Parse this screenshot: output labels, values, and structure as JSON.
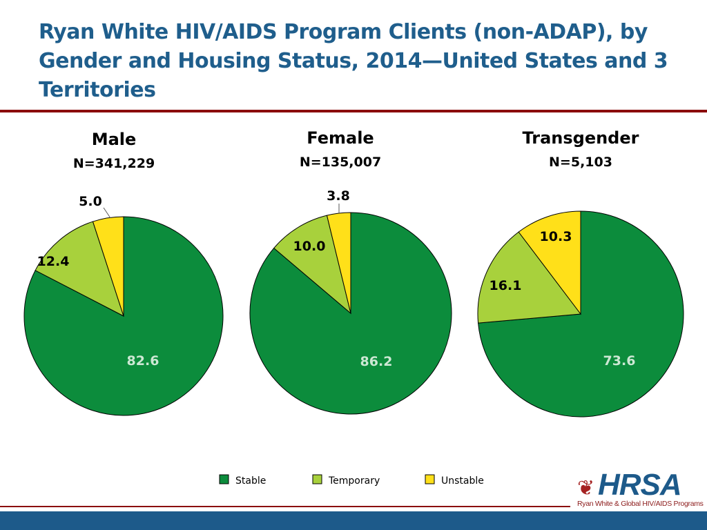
{
  "title": "Ryan White HIV/AIDS Program Clients (non-ADAP), by Gender and Housing Status, 2014—United States and 3 Territories",
  "colors": {
    "title": "#1f5e8c",
    "rule": "#8b0c0c",
    "stable": "#0c8c3c",
    "temporary": "#a8d13c",
    "unstable": "#ffe019",
    "bar": "#1d5a8a"
  },
  "chart_data": [
    {
      "type": "pie",
      "title": "Male",
      "subtitle": "N=341,229",
      "categories": [
        "Stable",
        "Temporary",
        "Unstable"
      ],
      "values": [
        82.6,
        12.4,
        5.0
      ],
      "value_labels": [
        "82.6",
        "12.4",
        "5.0"
      ]
    },
    {
      "type": "pie",
      "title": "Female",
      "subtitle": "N=135,007",
      "categories": [
        "Stable",
        "Temporary",
        "Unstable"
      ],
      "values": [
        86.2,
        10.0,
        3.8
      ],
      "value_labels": [
        "86.2",
        "10.0",
        "3.8"
      ]
    },
    {
      "type": "pie",
      "title": "Transgender",
      "subtitle": "N=5,103",
      "categories": [
        "Stable",
        "Temporary",
        "Unstable"
      ],
      "values": [
        73.6,
        16.1,
        10.3
      ],
      "value_labels": [
        "73.6",
        "16.1",
        "10.3"
      ]
    }
  ],
  "legend": {
    "placement": "bottom",
    "items": [
      "Stable",
      "Temporary",
      "Unstable"
    ]
  },
  "logo": {
    "name": "HRSA",
    "subtitle": "Ryan White & Global HIV/AIDS Programs"
  }
}
